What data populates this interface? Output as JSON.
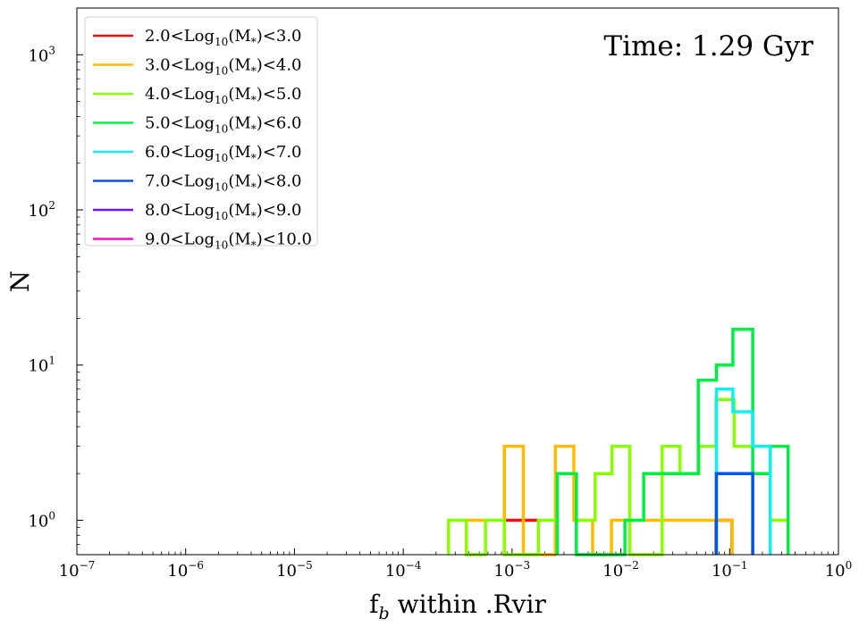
{
  "chart_data": {
    "type": "histogram",
    "xlabel": "f",
    "xlabel_sub": "b",
    "xlabel_rest": " within .Rvir",
    "ylabel": "N",
    "xscale": "log",
    "yscale": "log",
    "xlim": [
      1e-07,
      1
    ],
    "ylim": [
      0.6,
      2000
    ],
    "x_ticks": [
      {
        "value": 1e-07,
        "base": "10",
        "exp": "−7"
      },
      {
        "value": 1e-06,
        "base": "10",
        "exp": "−6"
      },
      {
        "value": 1e-05,
        "base": "10",
        "exp": "−5"
      },
      {
        "value": 0.0001,
        "base": "10",
        "exp": "−4"
      },
      {
        "value": 0.001,
        "base": "10",
        "exp": "−3"
      },
      {
        "value": 0.01,
        "base": "10",
        "exp": "−2"
      },
      {
        "value": 0.1,
        "base": "10",
        "exp": "−1"
      },
      {
        "value": 1,
        "base": "10",
        "exp": "0"
      }
    ],
    "y_ticks": [
      {
        "value": 1,
        "base": "10",
        "exp": "0"
      },
      {
        "value": 10,
        "base": "10",
        "exp": "1"
      },
      {
        "value": 100,
        "base": "10",
        "exp": "2"
      },
      {
        "value": 1000,
        "base": "10",
        "exp": "3"
      }
    ],
    "annotation": "Time: 1.29 Gyr",
    "legend_position": "upper-left",
    "series": [
      {
        "label_pre": "2.0<Log",
        "label_sub": "10",
        "label_post": "(M",
        "label_sub2": "*",
        "label_end": ")<3.0",
        "color": "#ee1111",
        "bins": [
          [
            0.00085,
            0.00175,
            1
          ],
          [
            0.075,
            0.105,
            1
          ]
        ]
      },
      {
        "label_pre": "3.0<Log",
        "label_sub": "10",
        "label_post": "(M",
        "label_sub2": "*",
        "label_end": ")<4.0",
        "color": "#ffbb00",
        "bins": [
          [
            0.00038,
            0.00057,
            1
          ],
          [
            0.00085,
            0.00127,
            3
          ],
          [
            0.00127,
            0.0025,
            0
          ],
          [
            0.0025,
            0.0037,
            3
          ],
          [
            0.0037,
            0.0055,
            1
          ],
          [
            0.0055,
            0.0082,
            0
          ],
          [
            0.0082,
            0.105,
            1
          ]
        ]
      },
      {
        "label_pre": "4.0<Log",
        "label_sub": "10",
        "label_post": "(M",
        "label_sub2": "*",
        "label_end": ")<5.0",
        "color": "#88ff00",
        "bins": [
          [
            0.00026,
            0.00038,
            1
          ],
          [
            0.00038,
            0.00057,
            0
          ],
          [
            0.00057,
            0.00085,
            1
          ],
          [
            0.00085,
            0.00175,
            0
          ],
          [
            0.00175,
            0.0026,
            1
          ],
          [
            0.0026,
            0.0039,
            2
          ],
          [
            0.0039,
            0.0058,
            1
          ],
          [
            0.0058,
            0.0083,
            2
          ],
          [
            0.0083,
            0.0121,
            3
          ],
          [
            0.0121,
            0.024,
            0
          ],
          [
            0.024,
            0.035,
            3
          ],
          [
            0.035,
            0.052,
            2
          ],
          [
            0.052,
            0.075,
            3
          ],
          [
            0.075,
            0.11,
            6
          ],
          [
            0.11,
            0.163,
            3
          ],
          [
            0.163,
            0.236,
            3
          ],
          [
            0.236,
            0.345,
            1
          ]
        ]
      },
      {
        "label_pre": "5.0<Log",
        "label_sub": "10",
        "label_post": "(M",
        "label_sub2": "*",
        "label_end": ")<6.0",
        "color": "#00ee44",
        "bins": [
          [
            0.0026,
            0.0039,
            2
          ],
          [
            0.0039,
            0.0109,
            0
          ],
          [
            0.0109,
            0.0162,
            1
          ],
          [
            0.0162,
            0.0245,
            2
          ],
          [
            0.0245,
            0.0515,
            2
          ],
          [
            0.0515,
            0.0755,
            8
          ],
          [
            0.0755,
            0.107,
            10
          ],
          [
            0.107,
            0.163,
            17
          ],
          [
            0.163,
            0.236,
            2
          ],
          [
            0.236,
            0.345,
            3
          ]
        ]
      },
      {
        "label_pre": "6.0<Log",
        "label_sub": "10",
        "label_post": "(M",
        "label_sub2": "*",
        "label_end": ")<7.0",
        "color": "#11eeee",
        "bins": [
          [
            0.0755,
            0.107,
            7
          ],
          [
            0.107,
            0.163,
            5
          ],
          [
            0.163,
            0.236,
            3
          ]
        ]
      },
      {
        "label_pre": "7.0<Log",
        "label_sub": "10",
        "label_post": "(M",
        "label_sub2": "*",
        "label_end": ")<8.0",
        "color": "#0055ee",
        "bins": [
          [
            0.0755,
            0.163,
            2
          ]
        ]
      },
      {
        "label_pre": "8.0<Log",
        "label_sub": "10",
        "label_post": "(M",
        "label_sub2": "*",
        "label_end": ")<9.0",
        "color": "#7711ee",
        "bins": []
      },
      {
        "label_pre": "9.0<Log",
        "label_sub": "10",
        "label_post": "(M",
        "label_sub2": "*",
        "label_end": ")<10.0",
        "color": "#ff11cc",
        "bins": []
      }
    ]
  }
}
